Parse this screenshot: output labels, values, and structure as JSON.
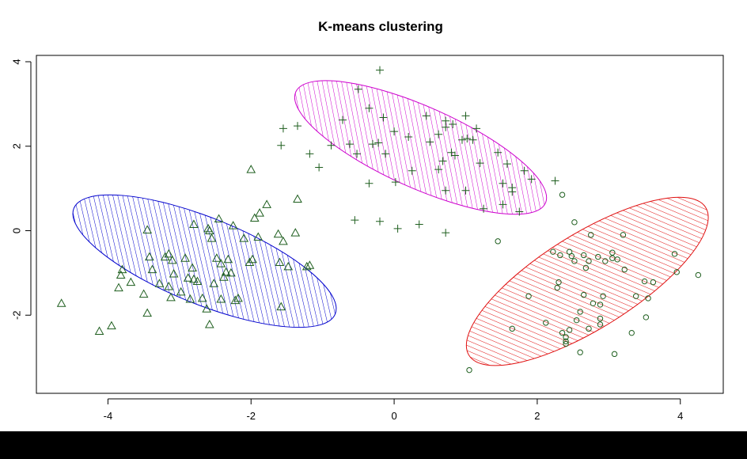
{
  "chart_data": {
    "type": "scatter",
    "title": "K-means clustering",
    "xlabel": "",
    "ylabel": "",
    "xlim": [
      -5.0,
      4.6
    ],
    "ylim": [
      -3.85,
      4.15
    ],
    "xticks": [
      -4,
      -2,
      0,
      2,
      4
    ],
    "yticks": [
      -2,
      0,
      2,
      4
    ],
    "grid": false,
    "legend": "none",
    "clusters": [
      {
        "marker": "triangle",
        "ellipse_color": "#0000CD",
        "ellipse": {
          "cx": -2.65,
          "cy": -0.72,
          "rx": 1.97,
          "ry": 1.02,
          "angle_deg": -22
        },
        "points": [
          [
            -4.65,
            -1.72
          ],
          [
            -4.12,
            -2.38
          ],
          [
            -3.95,
            -2.25
          ],
          [
            -3.82,
            -1.05
          ],
          [
            -3.8,
            -0.92
          ],
          [
            -3.85,
            -1.35
          ],
          [
            -3.68,
            -1.22
          ],
          [
            -3.5,
            -1.5
          ],
          [
            -3.45,
            0.02
          ],
          [
            -3.45,
            -1.95
          ],
          [
            -3.42,
            -0.62
          ],
          [
            -3.38,
            -0.92
          ],
          [
            -3.28,
            -1.25
          ],
          [
            -3.2,
            -0.62
          ],
          [
            -3.15,
            -0.55
          ],
          [
            -3.15,
            -1.32
          ],
          [
            -3.12,
            -1.58
          ],
          [
            -3.1,
            -0.7
          ],
          [
            -3.08,
            -1.02
          ],
          [
            -2.98,
            -1.45
          ],
          [
            -2.92,
            -0.65
          ],
          [
            -2.88,
            -1.12
          ],
          [
            -2.85,
            -1.62
          ],
          [
            -2.82,
            -0.88
          ],
          [
            -2.8,
            -1.15
          ],
          [
            -2.8,
            0.15
          ],
          [
            -2.75,
            -1.2
          ],
          [
            -2.68,
            -1.6
          ],
          [
            -2.62,
            -1.85
          ],
          [
            -2.6,
            0.05
          ],
          [
            -2.58,
            -2.22
          ],
          [
            -2.58,
            0.0
          ],
          [
            -2.55,
            -0.18
          ],
          [
            -2.52,
            -1.25
          ],
          [
            -2.48,
            -0.65
          ],
          [
            -2.45,
            0.28
          ],
          [
            -2.42,
            -1.62
          ],
          [
            -2.42,
            -0.78
          ],
          [
            -2.38,
            -1.1
          ],
          [
            -2.35,
            -0.98
          ],
          [
            -2.32,
            -0.68
          ],
          [
            -2.28,
            -1.0
          ],
          [
            -2.25,
            0.12
          ],
          [
            -2.22,
            -1.65
          ],
          [
            -2.18,
            -1.6
          ],
          [
            -2.1,
            -0.18
          ],
          [
            -2.02,
            -0.75
          ],
          [
            -1.98,
            -0.68
          ],
          [
            -1.95,
            0.3
          ],
          [
            -1.9,
            -0.15
          ],
          [
            -1.88,
            0.42
          ],
          [
            -2.0,
            1.45
          ],
          [
            -1.78,
            0.62
          ],
          [
            -1.62,
            -0.08
          ],
          [
            -1.6,
            -0.75
          ],
          [
            -1.58,
            -1.8
          ],
          [
            -1.55,
            -0.25
          ],
          [
            -1.48,
            -0.85
          ],
          [
            -1.38,
            -0.05
          ],
          [
            -1.35,
            0.75
          ],
          [
            -1.22,
            -0.85
          ],
          [
            -1.18,
            -0.82
          ]
        ]
      },
      {
        "marker": "plus",
        "ellipse_color": "#CD00CD",
        "ellipse": {
          "cx": 0.37,
          "cy": 1.97,
          "rx": 1.91,
          "ry": 0.96,
          "angle_deg": -24
        },
        "points": [
          [
            -0.2,
            3.8
          ],
          [
            -0.5,
            3.35
          ],
          [
            -0.35,
            2.9
          ],
          [
            -0.15,
            2.68
          ],
          [
            0.2,
            2.22
          ],
          [
            0.45,
            2.72
          ],
          [
            0.72,
            2.6
          ],
          [
            1.0,
            2.72
          ],
          [
            1.15,
            2.42
          ],
          [
            0.82,
            2.52
          ],
          [
            -1.55,
            2.42
          ],
          [
            -1.58,
            2.02
          ],
          [
            -1.35,
            2.48
          ],
          [
            -1.18,
            1.82
          ],
          [
            -1.05,
            1.5
          ],
          [
            -0.88,
            2.02
          ],
          [
            -0.72,
            2.62
          ],
          [
            -0.62,
            2.05
          ],
          [
            -0.52,
            1.82
          ],
          [
            -0.3,
            2.05
          ],
          [
            -0.22,
            2.08
          ],
          [
            -0.12,
            1.82
          ],
          [
            0.0,
            2.35
          ],
          [
            0.25,
            1.42
          ],
          [
            0.5,
            2.1
          ],
          [
            0.62,
            2.28
          ],
          [
            0.68,
            1.65
          ],
          [
            0.72,
            2.45
          ],
          [
            0.8,
            1.85
          ],
          [
            0.85,
            1.78
          ],
          [
            0.95,
            2.15
          ],
          [
            1.02,
            2.18
          ],
          [
            1.1,
            2.15
          ],
          [
            1.2,
            1.6
          ],
          [
            1.45,
            1.85
          ],
          [
            1.52,
            1.12
          ],
          [
            1.58,
            1.58
          ],
          [
            1.65,
            1.02
          ],
          [
            1.65,
            0.92
          ],
          [
            1.82,
            1.42
          ],
          [
            1.92,
            1.22
          ],
          [
            2.25,
            1.18
          ],
          [
            1.0,
            0.95
          ],
          [
            0.72,
            0.95
          ],
          [
            0.02,
            1.15
          ],
          [
            -0.35,
            1.12
          ],
          [
            -0.55,
            0.25
          ],
          [
            -0.2,
            0.22
          ],
          [
            0.05,
            0.05
          ],
          [
            0.35,
            0.15
          ],
          [
            0.72,
            -0.05
          ],
          [
            1.25,
            0.52
          ],
          [
            1.52,
            0.62
          ],
          [
            1.75,
            0.45
          ],
          [
            0.62,
            1.45
          ]
        ]
      },
      {
        "marker": "circle",
        "ellipse_color": "#E01010",
        "ellipse": {
          "cx": 2.7,
          "cy": -1.2,
          "rx": 1.95,
          "ry": 1.12,
          "angle_deg": 32
        },
        "points": [
          [
            2.35,
            0.85
          ],
          [
            2.52,
            0.2
          ],
          [
            2.75,
            -0.1
          ],
          [
            3.2,
            -0.1
          ],
          [
            3.92,
            -0.55
          ],
          [
            3.95,
            -0.98
          ],
          [
            4.25,
            -1.05
          ],
          [
            1.45,
            -0.25
          ],
          [
            2.22,
            -0.5
          ],
          [
            2.32,
            -0.58
          ],
          [
            2.45,
            -0.5
          ],
          [
            2.48,
            -0.6
          ],
          [
            2.52,
            -0.72
          ],
          [
            2.65,
            -0.58
          ],
          [
            2.68,
            -0.88
          ],
          [
            2.72,
            -0.72
          ],
          [
            2.85,
            -0.62
          ],
          [
            2.95,
            -0.72
          ],
          [
            3.05,
            -0.65
          ],
          [
            3.05,
            -0.52
          ],
          [
            3.12,
            -0.68
          ],
          [
            3.22,
            -0.92
          ],
          [
            3.5,
            -1.2
          ],
          [
            3.62,
            -1.22
          ],
          [
            3.38,
            -1.55
          ],
          [
            3.55,
            -1.6
          ],
          [
            3.52,
            -2.05
          ],
          [
            3.32,
            -2.42
          ],
          [
            3.08,
            -2.92
          ],
          [
            1.05,
            -3.3
          ],
          [
            2.3,
            -1.22
          ],
          [
            2.28,
            -1.35
          ],
          [
            1.88,
            -1.55
          ],
          [
            2.65,
            -1.52
          ],
          [
            2.92,
            -1.55
          ],
          [
            2.88,
            -1.75
          ],
          [
            2.78,
            -1.72
          ],
          [
            2.6,
            -1.92
          ],
          [
            2.55,
            -2.12
          ],
          [
            2.88,
            -2.08
          ],
          [
            2.88,
            -2.22
          ],
          [
            2.72,
            -2.32
          ],
          [
            2.45,
            -2.35
          ],
          [
            2.35,
            -2.42
          ],
          [
            2.4,
            -2.52
          ],
          [
            2.4,
            -2.62
          ],
          [
            2.4,
            -2.68
          ],
          [
            2.12,
            -2.18
          ],
          [
            1.65,
            -2.32
          ],
          [
            2.6,
            -2.88
          ]
        ]
      }
    ]
  }
}
